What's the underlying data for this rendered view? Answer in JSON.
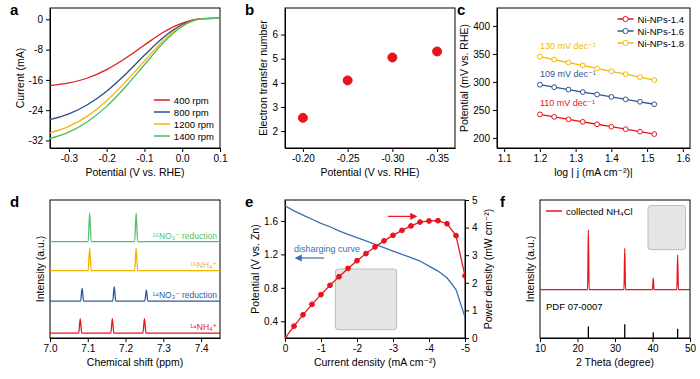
{
  "chart_data": [
    {
      "panel": "a",
      "type": "line",
      "xlabel": "Potential (V vs. RHE)",
      "ylabel": "Current (mA)",
      "x": [
        -0.35,
        -0.3,
        -0.25,
        -0.2,
        -0.15,
        -0.1,
        -0.05,
        0,
        0.05,
        0.1
      ],
      "xlim": [
        -0.35,
        0.1
      ],
      "xticks": [
        -0.3,
        -0.2,
        -0.1,
        {
          "value": 0,
          "label": "0.0"
        },
        0.1
      ],
      "ylim": [
        -34,
        3
      ],
      "yticks": [
        0,
        -8,
        -16,
        -24,
        -32
      ],
      "legend": "lower right",
      "series": [
        {
          "name": "400 rpm",
          "color": "#e41a1c",
          "values": [
            -17.5,
            -16.8,
            -15.5,
            -13.3,
            -10.3,
            -6.8,
            -3.4,
            -1.0,
            0.2,
            0.3
          ]
        },
        {
          "name": "800 rpm",
          "color": "#2b4e8c",
          "values": [
            -26.5,
            -25,
            -22.5,
            -19,
            -14.5,
            -9.5,
            -4.8,
            -1.4,
            0.1,
            0.3
          ]
        },
        {
          "name": "1200 rpm",
          "color": "#f2b705",
          "values": [
            -30,
            -28.3,
            -25.5,
            -21.5,
            -16.5,
            -11,
            -5.6,
            -1.7,
            0.1,
            0.3
          ]
        },
        {
          "name": "1400 rpm",
          "color": "#4cbb5c",
          "values": [
            -31.5,
            -29.8,
            -27,
            -23,
            -17.8,
            -12,
            -6.2,
            -1.9,
            0.1,
            0.3
          ]
        }
      ]
    },
    {
      "panel": "b",
      "type": "scatter",
      "xlabel": "Potential (V vs. RHE)",
      "ylabel": "Electron transfer number",
      "x": [
        -0.2,
        -0.25,
        -0.3,
        -0.35
      ],
      "values": [
        2.55,
        4.1,
        5.05,
        5.3
      ],
      "color": "#e8141d",
      "marker": "circle",
      "xlim": [
        -0.18,
        -0.37
      ],
      "xticks": [
        {
          "value": -0.2,
          "label": "-0.20"
        },
        -0.25,
        {
          "value": -0.3,
          "label": "-0.30"
        },
        -0.35
      ],
      "ylim": [
        1.3,
        7.1
      ],
      "yticks": [
        2,
        3,
        4,
        5,
        6
      ]
    },
    {
      "panel": "c",
      "type": "scatter",
      "xlabel": "log | j (mA cm⁻²)|",
      "ylabel": "Potential (mV vs. RHE)",
      "x": [
        1.2,
        1.24,
        1.28,
        1.32,
        1.36,
        1.4,
        1.44,
        1.48,
        1.52
      ],
      "xlim": [
        1.08,
        1.62
      ],
      "xticks": [
        1.1,
        1.2,
        1.3,
        1.4,
        1.5,
        1.6
      ],
      "ylim": [
        182,
        432
      ],
      "yticks": [
        200,
        250,
        300,
        350,
        400
      ],
      "legend": "upper right",
      "annotations": [
        "110 mV dec⁻¹",
        "109 mV dec⁻¹",
        "130 mV dec⁻¹"
      ],
      "series": [
        {
          "name": "Ni-NPs-1.4",
          "color": "#e8141d",
          "marker": "open_circle",
          "line_style": "solid",
          "values": [
            242,
            237.6,
            233.2,
            228.8,
            224.4,
            220,
            215.6,
            211.2,
            206.8
          ]
        },
        {
          "name": "Ni-NPs-1.6",
          "color": "#2f5597",
          "marker": "open_circle",
          "line_style": "solid",
          "values": [
            295,
            290.6,
            286.3,
            281.9,
            277.6,
            273.2,
            268.8,
            264.5,
            260.1
          ]
        },
        {
          "name": "Ni-NPs-1.8",
          "color": "#f5b800",
          "marker": "open_circle",
          "line_style": "solid",
          "values": [
            345,
            339.8,
            334.6,
            329.4,
            324.2,
            319,
            313.8,
            308.6,
            303.4
          ]
        }
      ]
    },
    {
      "panel": "d",
      "type": "line",
      "xlabel": "Chemical shift (ppm)",
      "ylabel": "Intensity (a.u.)",
      "xlim": [
        7.0,
        7.45
      ],
      "xticks": [
        {
          "value": 7.0,
          "label": "7.0"
        },
        7.1,
        7.2,
        7.3,
        7.4
      ],
      "ylim": [
        0,
        4.3
      ],
      "tick_labels": "x",
      "series": [
        {
          "name": "¹⁵NO₃⁻ reduction",
          "color": "#55c06a",
          "x": [
            7.0,
            7.101,
            7.105,
            7.109,
            7.224,
            7.228,
            7.232,
            7.45
          ],
          "values": [
            3.0,
            3.0,
            3.9,
            3.0,
            3.0,
            3.9,
            3.0,
            3.0
          ]
        },
        {
          "name": "¹⁵NH₄⁺",
          "color": "#f0b400",
          "x": [
            7.0,
            7.101,
            7.105,
            7.109,
            7.224,
            7.228,
            7.232,
            7.45
          ],
          "values": [
            2.1,
            2.1,
            2.8,
            2.1,
            2.1,
            2.8,
            2.1,
            2.1
          ]
        },
        {
          "name": "¹⁴NO₃⁻ reduction",
          "color": "#2e5a99",
          "x": [
            7.0,
            7.081,
            7.085,
            7.089,
            7.166,
            7.17,
            7.174,
            7.251,
            7.255,
            7.259,
            7.45
          ],
          "values": [
            1.15,
            1.15,
            1.55,
            1.15,
            1.15,
            1.6,
            1.15,
            1.15,
            1.5,
            1.15,
            1.15
          ]
        },
        {
          "name": "¹⁴NH₄⁺",
          "color": "#e8141d",
          "x": [
            7.0,
            7.076,
            7.08,
            7.084,
            7.161,
            7.165,
            7.169,
            7.246,
            7.25,
            7.254,
            7.45
          ],
          "values": [
            0.15,
            0.15,
            0.6,
            0.15,
            0.15,
            0.6,
            0.15,
            0.15,
            0.6,
            0.15,
            0.15
          ]
        }
      ]
    },
    {
      "panel": "e",
      "type": "line",
      "xlabel": "Current density (mA cm⁻²)",
      "ylabel": "Potential (V vs. Zn)",
      "y2label": "Power density (mW cm⁻²)",
      "x": [
        0,
        -0.25,
        -0.5,
        -0.75,
        -1,
        -1.25,
        -1.5,
        -1.75,
        -2,
        -2.25,
        -2.5,
        -2.75,
        -3,
        -3.25,
        -3.5,
        -3.75,
        -4,
        -4.25,
        -4.5,
        -4.75,
        -5
      ],
      "xlim": [
        0,
        -5
      ],
      "xticks": [
        0,
        -1,
        -2,
        -3,
        -4,
        -5
      ],
      "ylim": [
        0.2,
        1.85
      ],
      "yticks": [
        0.4,
        0.8,
        1.2,
        1.6
      ],
      "y2lim": [
        0,
        5
      ],
      "y2ticks": [
        0,
        1,
        2,
        3,
        4,
        5
      ],
      "series": [
        {
          "name": "disharging curve",
          "color": "#3a6fb0",
          "values": [
            1.78,
            1.72,
            1.67,
            1.62,
            1.57,
            1.53,
            1.48,
            1.44,
            1.4,
            1.36,
            1.32,
            1.28,
            1.24,
            1.2,
            1.16,
            1.12,
            1.06,
            1.0,
            0.92,
            0.78,
            0.45
          ]
        },
        {
          "color": "#e8141d",
          "axis": "y2",
          "marker": "circle",
          "line_style": "solid",
          "values": [
            0,
            0.43,
            0.84,
            1.22,
            1.57,
            1.91,
            2.22,
            2.52,
            2.8,
            3.06,
            3.3,
            3.52,
            3.72,
            3.9,
            4.06,
            4.2,
            4.24,
            4.25,
            4.14,
            3.71,
            2.25
          ]
        }
      ]
    },
    {
      "panel": "f",
      "type": "line",
      "xlabel": "2 Theta (degree)",
      "ylabel": "Intensity (a.u.)",
      "xlim": [
        10,
        50
      ],
      "xticks": [
        10,
        20,
        30,
        40,
        50
      ],
      "ylim": [
        0,
        1.2
      ],
      "tick_labels": "x",
      "legend": "upper left",
      "series": [
        {
          "name": "collected NH₄Cl",
          "color": "#e8141d",
          "x": [
            10,
            22.7,
            22.9,
            23.1,
            32.4,
            32.6,
            32.8,
            40.0,
            40.2,
            40.4,
            46.5,
            46.7,
            46.9,
            50
          ],
          "values": [
            0.42,
            0.42,
            0.94,
            0.42,
            0.42,
            0.78,
            0.42,
            0.42,
            0.52,
            0.42,
            0.42,
            0.72,
            0.42,
            0.42
          ]
        },
        {
          "name": "PDF 07-0007",
          "type": "stem",
          "color": "#000000",
          "x": [
            22.9,
            32.6,
            40.2,
            46.7
          ],
          "values": [
            0.1,
            0.12,
            0.05,
            0.08
          ]
        }
      ]
    }
  ]
}
